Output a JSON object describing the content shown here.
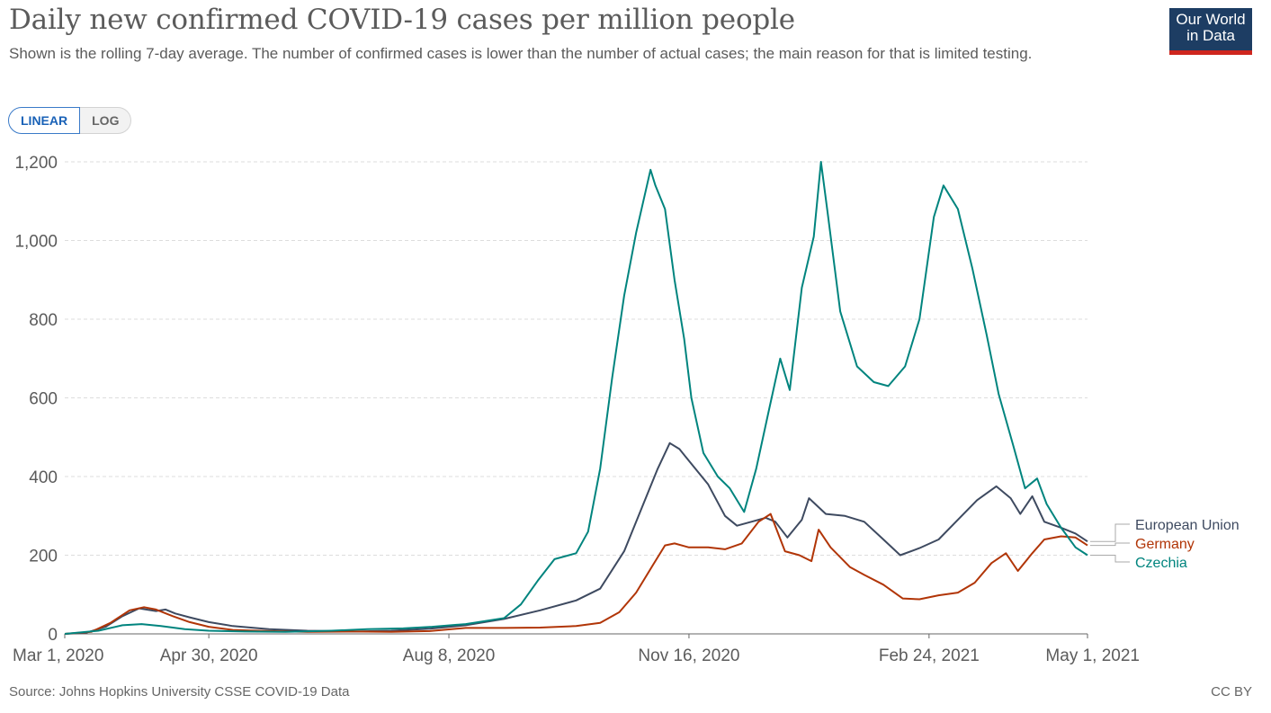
{
  "header": {
    "title": "Daily new confirmed COVID-19 cases per million people",
    "subtitle": "Shown is the rolling 7-day average. The number of confirmed cases is lower than the number of actual cases; the main reason for that is limited testing."
  },
  "logo": {
    "line1": "Our World",
    "line2": "in Data"
  },
  "scale_toggle": {
    "linear_label": "LINEAR",
    "log_label": "LOG",
    "selected": "LINEAR"
  },
  "footer": {
    "source": "Source: Johns Hopkins University CSSE COVID-19 Data",
    "license": "CC BY"
  },
  "colors": {
    "grid": "#dddddd",
    "axis": "#666666",
    "tick_text": "#5b5b5b"
  },
  "chart_data": {
    "type": "line",
    "title": "Daily new confirmed COVID-19 cases per million people",
    "xlabel": "",
    "ylabel": "",
    "x_range": [
      "2020-03-01",
      "2021-05-01"
    ],
    "ylim": [
      0,
      1200
    ],
    "y_ticks": [
      0,
      200,
      400,
      600,
      800,
      1000,
      1200
    ],
    "y_tick_labels": [
      "0",
      "200",
      "400",
      "600",
      "800",
      "1,000",
      "1,200"
    ],
    "x_ticks": [
      "2020-03-01",
      "2020-04-30",
      "2020-08-08",
      "2020-11-16",
      "2021-02-24",
      "2021-05-01"
    ],
    "x_tick_labels": [
      "Mar 1, 2020",
      "Apr 30, 2020",
      "Aug 8, 2020",
      "Nov 16, 2020",
      "Feb 24, 2021",
      "May 1, 2021"
    ],
    "grid": "horizontal dashed",
    "legend": "end-of-line labels on the right",
    "series": [
      {
        "name": "European Union",
        "color": "#3e4a60",
        "points": [
          [
            "2020-03-01",
            0
          ],
          [
            "2020-03-10",
            3
          ],
          [
            "2020-03-18",
            18
          ],
          [
            "2020-03-25",
            45
          ],
          [
            "2020-04-01",
            65
          ],
          [
            "2020-04-08",
            58
          ],
          [
            "2020-04-12",
            62
          ],
          [
            "2020-04-16",
            52
          ],
          [
            "2020-04-22",
            42
          ],
          [
            "2020-04-30",
            30
          ],
          [
            "2020-05-10",
            20
          ],
          [
            "2020-05-25",
            12
          ],
          [
            "2020-06-10",
            8
          ],
          [
            "2020-06-30",
            6
          ],
          [
            "2020-07-15",
            8
          ],
          [
            "2020-07-31",
            13
          ],
          [
            "2020-08-15",
            22
          ],
          [
            "2020-08-31",
            38
          ],
          [
            "2020-09-15",
            60
          ],
          [
            "2020-09-30",
            85
          ],
          [
            "2020-10-10",
            115
          ],
          [
            "2020-10-20",
            210
          ],
          [
            "2020-10-28",
            330
          ],
          [
            "2020-11-03",
            420
          ],
          [
            "2020-11-08",
            485
          ],
          [
            "2020-11-12",
            470
          ],
          [
            "2020-11-16",
            440
          ],
          [
            "2020-11-24",
            380
          ],
          [
            "2020-12-01",
            300
          ],
          [
            "2020-12-06",
            275
          ],
          [
            "2020-12-12",
            285
          ],
          [
            "2020-12-18",
            295
          ],
          [
            "2020-12-22",
            285
          ],
          [
            "2020-12-27",
            245
          ],
          [
            "2021-01-02",
            290
          ],
          [
            "2021-01-05",
            345
          ],
          [
            "2021-01-12",
            305
          ],
          [
            "2021-01-20",
            300
          ],
          [
            "2021-01-28",
            285
          ],
          [
            "2021-02-05",
            240
          ],
          [
            "2021-02-12",
            200
          ],
          [
            "2021-02-20",
            218
          ],
          [
            "2021-02-28",
            240
          ],
          [
            "2021-03-08",
            290
          ],
          [
            "2021-03-16",
            340
          ],
          [
            "2021-03-24",
            375
          ],
          [
            "2021-03-30",
            345
          ],
          [
            "2021-04-03",
            305
          ],
          [
            "2021-04-08",
            350
          ],
          [
            "2021-04-13",
            285
          ],
          [
            "2021-04-20",
            270
          ],
          [
            "2021-04-26",
            255
          ],
          [
            "2021-05-01",
            235
          ]
        ]
      },
      {
        "name": "Germany",
        "color": "#b13507",
        "points": [
          [
            "2020-03-01",
            0
          ],
          [
            "2020-03-12",
            5
          ],
          [
            "2020-03-20",
            28
          ],
          [
            "2020-03-28",
            60
          ],
          [
            "2020-04-03",
            68
          ],
          [
            "2020-04-08",
            62
          ],
          [
            "2020-04-15",
            45
          ],
          [
            "2020-04-22",
            30
          ],
          [
            "2020-04-30",
            18
          ],
          [
            "2020-05-10",
            10
          ],
          [
            "2020-05-25",
            7
          ],
          [
            "2020-06-10",
            5
          ],
          [
            "2020-06-30",
            6
          ],
          [
            "2020-07-15",
            5
          ],
          [
            "2020-07-31",
            7
          ],
          [
            "2020-08-15",
            15
          ],
          [
            "2020-08-31",
            15
          ],
          [
            "2020-09-15",
            16
          ],
          [
            "2020-09-30",
            20
          ],
          [
            "2020-10-10",
            28
          ],
          [
            "2020-10-18",
            55
          ],
          [
            "2020-10-25",
            105
          ],
          [
            "2020-11-01",
            175
          ],
          [
            "2020-11-06",
            225
          ],
          [
            "2020-11-10",
            230
          ],
          [
            "2020-11-16",
            220
          ],
          [
            "2020-11-24",
            220
          ],
          [
            "2020-12-01",
            215
          ],
          [
            "2020-12-08",
            230
          ],
          [
            "2020-12-15",
            285
          ],
          [
            "2020-12-20",
            305
          ],
          [
            "2020-12-26",
            210
          ],
          [
            "2021-01-01",
            200
          ],
          [
            "2021-01-06",
            185
          ],
          [
            "2021-01-09",
            265
          ],
          [
            "2021-01-14",
            220
          ],
          [
            "2021-01-22",
            170
          ],
          [
            "2021-01-28",
            150
          ],
          [
            "2021-02-05",
            125
          ],
          [
            "2021-02-13",
            90
          ],
          [
            "2021-02-20",
            88
          ],
          [
            "2021-02-28",
            98
          ],
          [
            "2021-03-08",
            105
          ],
          [
            "2021-03-15",
            130
          ],
          [
            "2021-03-22",
            180
          ],
          [
            "2021-03-28",
            205
          ],
          [
            "2021-04-02",
            160
          ],
          [
            "2021-04-08",
            205
          ],
          [
            "2021-04-13",
            240
          ],
          [
            "2021-04-20",
            248
          ],
          [
            "2021-04-26",
            245
          ],
          [
            "2021-05-01",
            225
          ]
        ]
      },
      {
        "name": "Czechia",
        "color": "#00847e",
        "points": [
          [
            "2020-03-01",
            0
          ],
          [
            "2020-03-15",
            8
          ],
          [
            "2020-03-25",
            22
          ],
          [
            "2020-04-02",
            25
          ],
          [
            "2020-04-10",
            20
          ],
          [
            "2020-04-20",
            12
          ],
          [
            "2020-04-30",
            8
          ],
          [
            "2020-05-15",
            6
          ],
          [
            "2020-06-01",
            5
          ],
          [
            "2020-06-20",
            8
          ],
          [
            "2020-07-05",
            12
          ],
          [
            "2020-07-20",
            14
          ],
          [
            "2020-08-01",
            18
          ],
          [
            "2020-08-15",
            25
          ],
          [
            "2020-08-31",
            40
          ],
          [
            "2020-09-07",
            75
          ],
          [
            "2020-09-14",
            135
          ],
          [
            "2020-09-21",
            190
          ],
          [
            "2020-09-30",
            205
          ],
          [
            "2020-10-05",
            260
          ],
          [
            "2020-10-10",
            420
          ],
          [
            "2020-10-15",
            650
          ],
          [
            "2020-10-20",
            860
          ],
          [
            "2020-10-25",
            1020
          ],
          [
            "2020-10-31",
            1180
          ],
          [
            "2020-11-02",
            1140
          ],
          [
            "2020-11-06",
            1080
          ],
          [
            "2020-11-10",
            900
          ],
          [
            "2020-11-14",
            750
          ],
          [
            "2020-11-17",
            600
          ],
          [
            "2020-11-22",
            460
          ],
          [
            "2020-11-28",
            400
          ],
          [
            "2020-12-03",
            370
          ],
          [
            "2020-12-09",
            310
          ],
          [
            "2020-12-14",
            420
          ],
          [
            "2020-12-19",
            560
          ],
          [
            "2020-12-24",
            700
          ],
          [
            "2020-12-28",
            620
          ],
          [
            "2021-01-02",
            880
          ],
          [
            "2021-01-07",
            1010
          ],
          [
            "2021-01-10",
            1200
          ],
          [
            "2021-01-13",
            1060
          ],
          [
            "2021-01-18",
            820
          ],
          [
            "2021-01-25",
            680
          ],
          [
            "2021-02-01",
            640
          ],
          [
            "2021-02-07",
            630
          ],
          [
            "2021-02-14",
            680
          ],
          [
            "2021-02-20",
            800
          ],
          [
            "2021-02-26",
            1060
          ],
          [
            "2021-03-02",
            1140
          ],
          [
            "2021-03-08",
            1080
          ],
          [
            "2021-03-14",
            930
          ],
          [
            "2021-03-20",
            760
          ],
          [
            "2021-03-25",
            610
          ],
          [
            "2021-03-31",
            480
          ],
          [
            "2021-04-05",
            370
          ],
          [
            "2021-04-10",
            395
          ],
          [
            "2021-04-14",
            330
          ],
          [
            "2021-04-20",
            270
          ],
          [
            "2021-04-26",
            220
          ],
          [
            "2021-05-01",
            200
          ]
        ]
      }
    ]
  }
}
